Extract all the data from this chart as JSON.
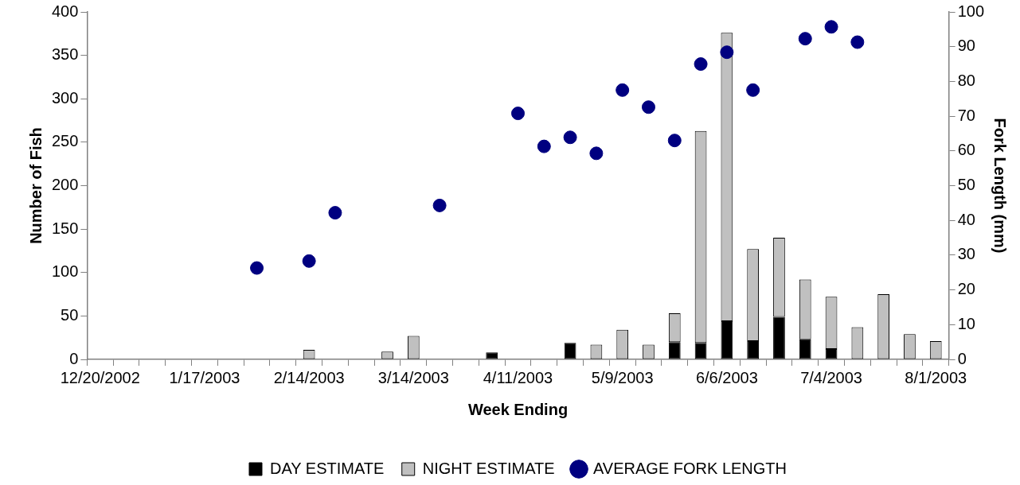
{
  "chart_data": {
    "type": "bar",
    "stacked": true,
    "xlabel": "Week Ending",
    "ylabel": "Number of Fish",
    "y2label": "Fork Length (mm)",
    "legend": "bottom",
    "categories": [
      "12/20/2002",
      null,
      null,
      null,
      "1/17/2003",
      null,
      null,
      null,
      "2/14/2003",
      null,
      null,
      null,
      "3/14/2003",
      null,
      null,
      null,
      "4/11/2003",
      null,
      null,
      null,
      "5/9/2003",
      null,
      null,
      null,
      "6/6/2003",
      null,
      null,
      null,
      "7/4/2003",
      null,
      null,
      null,
      "8/1/2003"
    ],
    "ylim": [
      0,
      400
    ],
    "yticks": [
      0,
      50,
      100,
      150,
      200,
      250,
      300,
      350,
      400
    ],
    "y2lim": [
      0,
      100
    ],
    "y2ticks": [
      0,
      10,
      20,
      30,
      40,
      50,
      60,
      70,
      80,
      90,
      100
    ],
    "series": [
      {
        "name": "DAY ESTIMATE",
        "color": "#000000",
        "values": [
          null,
          null,
          null,
          null,
          null,
          null,
          null,
          null,
          null,
          null,
          null,
          null,
          null,
          null,
          null,
          8,
          null,
          null,
          19,
          null,
          null,
          null,
          20,
          19,
          44,
          21,
          49,
          23,
          12,
          null,
          null,
          null,
          null
        ]
      },
      {
        "name": "NIGHT ESTIMATE",
        "color": "#c0c0c0",
        "values": [
          null,
          null,
          null,
          null,
          null,
          null,
          null,
          null,
          11,
          null,
          null,
          9,
          27,
          null,
          null,
          null,
          null,
          null,
          null,
          17,
          34,
          17,
          33,
          244,
          332,
          106,
          91,
          69,
          60,
          37,
          75,
          29,
          21
        ]
      },
      {
        "name": "AVERAGE FORK LENGTH",
        "type": "scatter",
        "axis": "y2",
        "marker": "circle",
        "color": "#000080",
        "values": [
          null,
          null,
          null,
          null,
          null,
          null,
          26.3,
          null,
          28.3,
          42.2,
          null,
          null,
          null,
          44.3,
          null,
          null,
          70.8,
          61.3,
          63.9,
          59.3,
          77.5,
          72.6,
          63.0,
          85.0,
          88.4,
          77.5,
          null,
          92.3,
          95.7,
          91.3,
          null,
          null,
          null
        ]
      }
    ]
  }
}
